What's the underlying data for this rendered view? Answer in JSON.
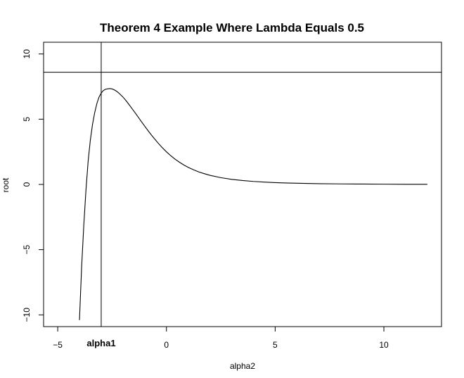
{
  "chart_data": {
    "type": "line",
    "title": "Theorem 4 Example Where Lambda Equals 0.5",
    "xlabel": "alpha2",
    "ylabel": "root",
    "xlim": [
      -5.65,
      12.65
    ],
    "ylim": [
      -10.9,
      10.9
    ],
    "x_ticks": [
      -5,
      0,
      5,
      10
    ],
    "x_tick_labels": [
      "−5",
      "0",
      "5",
      "10"
    ],
    "y_ticks": [
      -10,
      -5,
      0,
      5,
      10
    ],
    "y_tick_labels": [
      "−10",
      "−5",
      "0",
      "5",
      "10"
    ],
    "grid": false,
    "legend": "none",
    "series": [
      {
        "color": "#000000",
        "x": [
          -4.0,
          -3.9,
          -3.8,
          -3.7,
          -3.6,
          -3.5,
          -3.4,
          -3.3,
          -3.2,
          -3.1,
          -3.0,
          -2.9,
          -2.8,
          -2.7,
          -2.6,
          -2.5,
          -2.4,
          -2.3,
          -2.2,
          -2.0,
          -1.8,
          -1.6,
          -1.4,
          -1.2,
          -1.0,
          -0.8,
          -0.6,
          -0.4,
          -0.2,
          0.0,
          0.2,
          0.4,
          0.6,
          0.8,
          1.0,
          1.25,
          1.5,
          1.75,
          2.0,
          2.5,
          3.0,
          3.5,
          4.0,
          4.5,
          5.0,
          5.5,
          6.0,
          7.0,
          8.0,
          9.0,
          10.0,
          11.0,
          12.0
        ],
        "y": [
          -10.4,
          -6.3,
          -3.1,
          -0.4,
          1.8,
          3.4,
          4.6,
          5.5,
          6.2,
          6.7,
          7.0,
          7.2,
          7.3,
          7.33,
          7.35,
          7.32,
          7.25,
          7.15,
          7.02,
          6.7,
          6.3,
          5.85,
          5.4,
          4.93,
          4.47,
          4.02,
          3.6,
          3.2,
          2.83,
          2.5,
          2.2,
          1.93,
          1.7,
          1.49,
          1.31,
          1.12,
          0.95,
          0.82,
          0.7,
          0.52,
          0.39,
          0.3,
          0.23,
          0.18,
          0.14,
          0.11,
          0.09,
          0.06,
          0.04,
          0.03,
          0.02,
          0.01,
          0.01
        ]
      }
    ],
    "reference_lines": [
      {
        "orientation": "vertical",
        "x": -3.0,
        "label": "alpha1"
      },
      {
        "orientation": "horizontal",
        "y": 8.6
      }
    ]
  }
}
